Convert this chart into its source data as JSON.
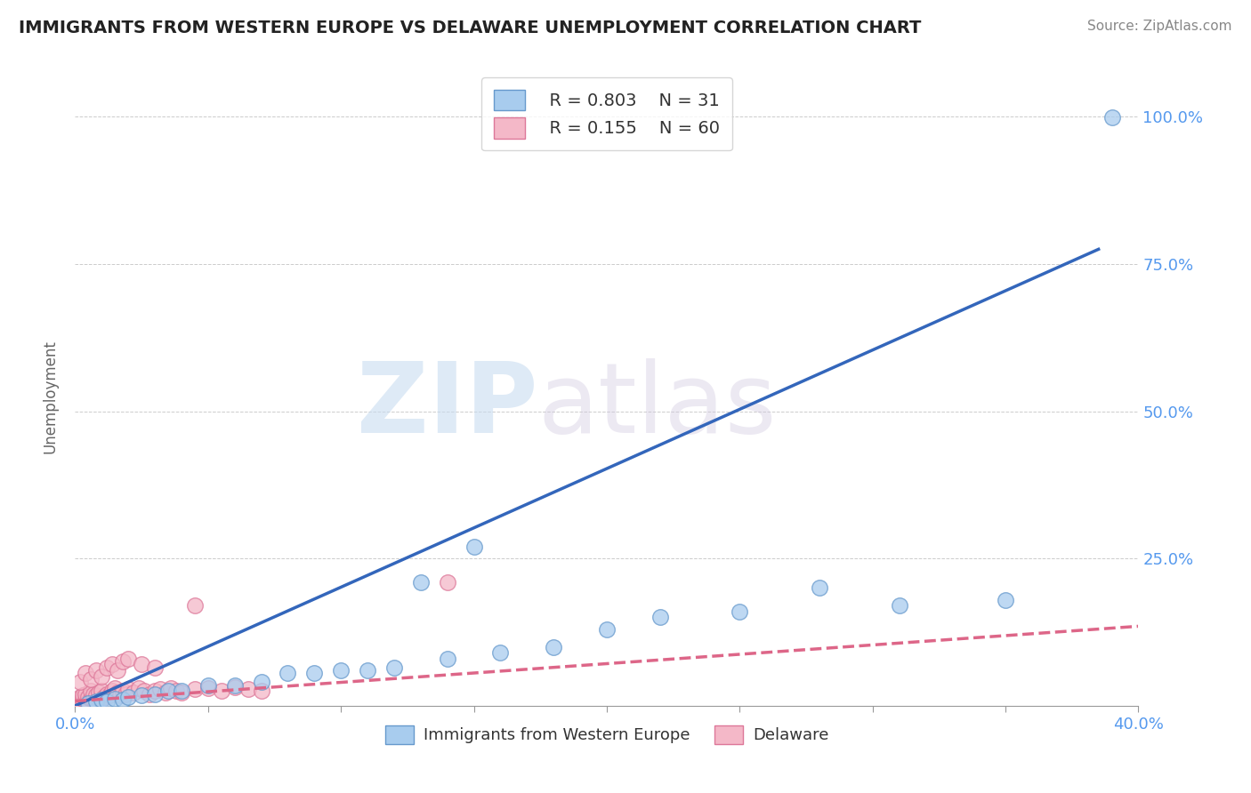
{
  "title": "IMMIGRANTS FROM WESTERN EUROPE VS DELAWARE UNEMPLOYMENT CORRELATION CHART",
  "source_text": "Source: ZipAtlas.com",
  "ylabel": "Unemployment",
  "xlim": [
    0.0,
    0.4
  ],
  "ylim": [
    0.0,
    1.05
  ],
  "blue_R": 0.803,
  "blue_N": 31,
  "pink_R": 0.155,
  "pink_N": 60,
  "blue_label": "Immigrants from Western Europe",
  "pink_label": "Delaware",
  "watermark_zip": "ZIP",
  "watermark_atlas": "atlas",
  "blue_color": "#A8CCEE",
  "pink_color": "#F4B8C8",
  "blue_edge_color": "#6699CC",
  "pink_edge_color": "#DD7799",
  "blue_line_color": "#3366BB",
  "pink_line_color": "#DD6688",
  "legend_R_color": "#4488EE",
  "blue_scatter_x": [
    0.005,
    0.008,
    0.01,
    0.012,
    0.015,
    0.018,
    0.02,
    0.025,
    0.03,
    0.035,
    0.04,
    0.05,
    0.06,
    0.07,
    0.08,
    0.09,
    0.1,
    0.11,
    0.12,
    0.14,
    0.16,
    0.18,
    0.2,
    0.22,
    0.25,
    0.28,
    0.31,
    0.35,
    0.15,
    0.13,
    0.39
  ],
  "blue_scatter_y": [
    0.005,
    0.008,
    0.01,
    0.008,
    0.012,
    0.01,
    0.015,
    0.018,
    0.02,
    0.025,
    0.025,
    0.035,
    0.035,
    0.04,
    0.055,
    0.055,
    0.06,
    0.06,
    0.065,
    0.08,
    0.09,
    0.1,
    0.13,
    0.15,
    0.16,
    0.2,
    0.17,
    0.18,
    0.27,
    0.21,
    0.999
  ],
  "pink_scatter_x": [
    0.001,
    0.001,
    0.002,
    0.002,
    0.003,
    0.003,
    0.004,
    0.004,
    0.005,
    0.005,
    0.006,
    0.006,
    0.007,
    0.007,
    0.008,
    0.008,
    0.009,
    0.009,
    0.01,
    0.01,
    0.011,
    0.012,
    0.013,
    0.014,
    0.015,
    0.016,
    0.017,
    0.018,
    0.019,
    0.02,
    0.022,
    0.024,
    0.026,
    0.028,
    0.03,
    0.032,
    0.034,
    0.036,
    0.038,
    0.04,
    0.045,
    0.05,
    0.055,
    0.06,
    0.065,
    0.07,
    0.002,
    0.004,
    0.006,
    0.008,
    0.01,
    0.012,
    0.014,
    0.016,
    0.018,
    0.02,
    0.025,
    0.03,
    0.14,
    0.045
  ],
  "pink_scatter_y": [
    0.005,
    0.01,
    0.008,
    0.015,
    0.012,
    0.018,
    0.01,
    0.02,
    0.008,
    0.015,
    0.012,
    0.025,
    0.01,
    0.02,
    0.008,
    0.018,
    0.012,
    0.022,
    0.01,
    0.025,
    0.015,
    0.02,
    0.018,
    0.025,
    0.03,
    0.022,
    0.018,
    0.025,
    0.02,
    0.028,
    0.022,
    0.03,
    0.025,
    0.02,
    0.025,
    0.028,
    0.022,
    0.03,
    0.025,
    0.022,
    0.028,
    0.03,
    0.025,
    0.032,
    0.028,
    0.025,
    0.04,
    0.055,
    0.045,
    0.06,
    0.05,
    0.065,
    0.07,
    0.06,
    0.075,
    0.08,
    0.07,
    0.065,
    0.21,
    0.17
  ],
  "blue_line_x": [
    0.0,
    0.385
  ],
  "blue_line_y": [
    0.0,
    0.775
  ],
  "pink_line_x": [
    0.0,
    0.4
  ],
  "pink_line_y": [
    0.008,
    0.135
  ]
}
